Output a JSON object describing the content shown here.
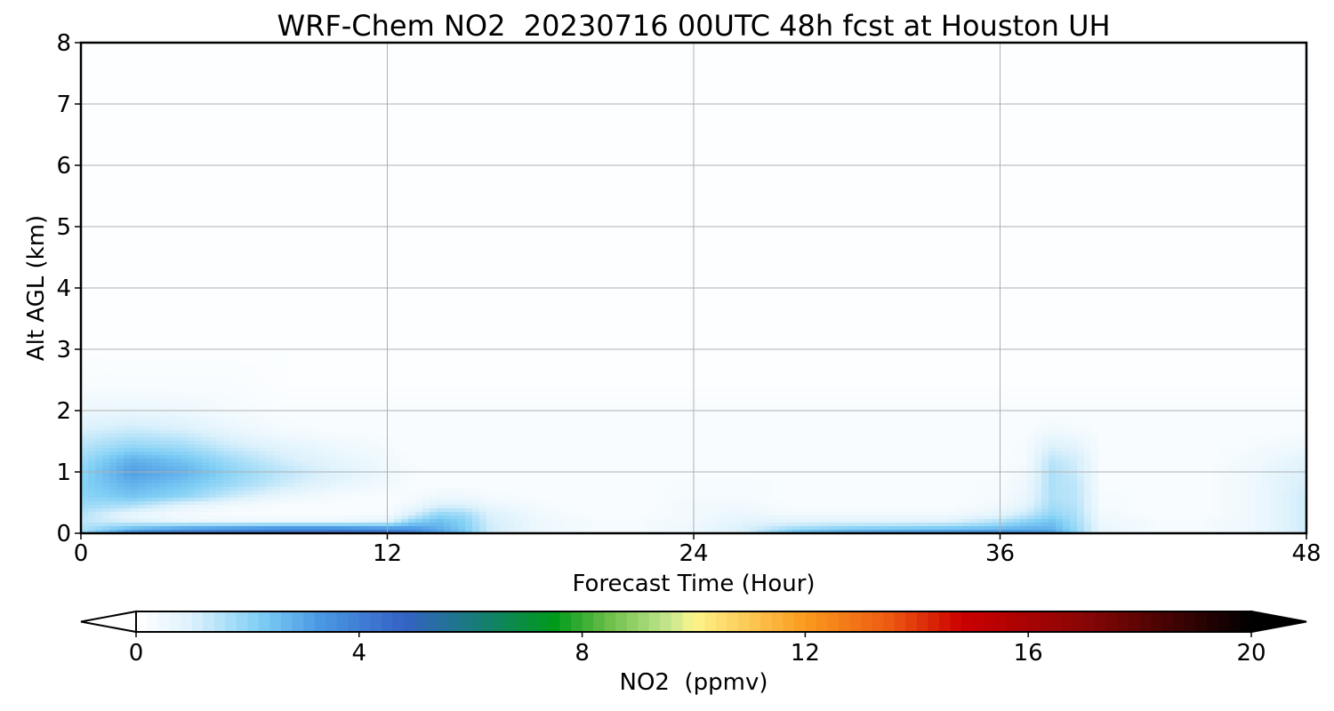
{
  "chart_data": {
    "type": "heatmap",
    "title": "WRF-Chem NO2  20230716 00UTC 48h fcst at Houston UH",
    "xlabel": "Forecast Time (Hour)",
    "ylabel": "Alt AGL (km)",
    "xlim": [
      0,
      48
    ],
    "ylim": [
      0,
      8
    ],
    "xticks": [
      "0",
      "12",
      "24",
      "36",
      "48"
    ],
    "yticks": [
      "0",
      "1",
      "2",
      "3",
      "4",
      "5",
      "6",
      "7",
      "8"
    ],
    "grid": true,
    "x_hours": [
      0,
      2,
      4,
      6,
      8,
      10,
      12,
      13,
      14,
      15,
      16,
      18,
      20,
      22,
      24,
      26,
      28,
      30,
      32,
      34,
      36,
      37,
      38,
      39,
      40,
      42,
      44,
      46,
      48
    ],
    "alt_km": [
      0,
      0.05,
      0.1,
      0.2,
      0.3,
      0.45,
      0.6,
      0.8,
      1.0,
      1.2,
      1.4,
      1.7,
      2.0,
      2.4,
      3.0,
      8.0
    ],
    "no2_ppmv": [
      [
        1.8,
        3.5,
        4.0,
        4.2,
        4.4,
        4.5,
        4.5,
        4.0,
        3.2,
        2.5,
        1.2,
        0.5,
        0.3,
        0.3,
        0.5,
        1.0,
        2.5,
        3.0,
        3.2,
        3.3,
        3.5,
        3.5,
        3.3,
        2.0,
        0.6,
        0.3,
        0.3,
        0.5,
        1.2
      ],
      [
        1.6,
        3.0,
        3.5,
        3.8,
        4.0,
        4.0,
        3.8,
        3.6,
        3.0,
        2.4,
        1.2,
        0.5,
        0.3,
        0.3,
        0.5,
        1.0,
        2.2,
        2.6,
        2.8,
        2.9,
        3.0,
        3.0,
        2.9,
        1.9,
        0.6,
        0.3,
        0.3,
        0.5,
        1.2
      ],
      [
        1.5,
        2.2,
        2.6,
        2.8,
        3.0,
        3.0,
        2.8,
        3.0,
        2.8,
        2.2,
        1.2,
        0.5,
        0.3,
        0.3,
        0.5,
        1.0,
        1.5,
        1.8,
        1.9,
        2.0,
        2.3,
        2.6,
        2.7,
        1.8,
        0.6,
        0.3,
        0.3,
        0.5,
        1.2
      ],
      [
        1.4,
        1.0,
        0.6,
        0.5,
        0.5,
        0.5,
        0.8,
        2.0,
        2.5,
        2.1,
        1.1,
        0.5,
        0.3,
        0.3,
        0.4,
        0.8,
        0.8,
        0.8,
        0.8,
        0.9,
        1.5,
        2.0,
        2.4,
        1.7,
        0.5,
        0.3,
        0.3,
        0.5,
        1.2
      ],
      [
        1.5,
        0.6,
        0.3,
        0.2,
        0.2,
        0.2,
        0.3,
        1.1,
        2.0,
        1.8,
        1.0,
        0.4,
        0.2,
        0.2,
        0.4,
        0.6,
        0.4,
        0.4,
        0.4,
        0.4,
        0.8,
        1.3,
        2.0,
        1.6,
        0.4,
        0.2,
        0.2,
        0.5,
        1.2
      ],
      [
        1.8,
        1.6,
        0.8,
        0.4,
        0.2,
        0.2,
        0.2,
        0.5,
        1.0,
        1.0,
        0.6,
        0.3,
        0.2,
        0.2,
        0.4,
        0.4,
        0.2,
        0.2,
        0.2,
        0.2,
        0.4,
        0.8,
        1.7,
        1.5,
        0.3,
        0.2,
        0.2,
        0.5,
        1.2
      ],
      [
        2.0,
        2.4,
        2.0,
        1.2,
        0.6,
        0.3,
        0.2,
        0.3,
        0.5,
        0.5,
        0.3,
        0.2,
        0.2,
        0.2,
        0.3,
        0.3,
        0.2,
        0.2,
        0.2,
        0.2,
        0.3,
        0.6,
        1.6,
        1.4,
        0.3,
        0.2,
        0.2,
        0.5,
        1.2
      ],
      [
        2.1,
        2.8,
        2.4,
        1.8,
        1.2,
        0.7,
        0.4,
        0.2,
        0.2,
        0.2,
        0.2,
        0.2,
        0.2,
        0.2,
        0.3,
        0.3,
        0.2,
        0.2,
        0.2,
        0.2,
        0.3,
        0.5,
        1.6,
        1.4,
        0.2,
        0.2,
        0.2,
        0.5,
        1.1
      ],
      [
        2.0,
        3.2,
        2.8,
        2.0,
        1.4,
        0.9,
        0.5,
        0.3,
        0.2,
        0.2,
        0.2,
        0.2,
        0.2,
        0.2,
        0.2,
        0.2,
        0.2,
        0.2,
        0.2,
        0.2,
        0.2,
        0.4,
        1.6,
        1.2,
        0.2,
        0.2,
        0.2,
        0.5,
        1.0
      ],
      [
        1.8,
        2.8,
        2.4,
        1.7,
        1.1,
        0.7,
        0.4,
        0.2,
        0.2,
        0.2,
        0.2,
        0.2,
        0.2,
        0.2,
        0.2,
        0.2,
        0.2,
        0.2,
        0.2,
        0.2,
        0.2,
        0.3,
        1.4,
        1.1,
        0.2,
        0.2,
        0.2,
        0.4,
        0.8
      ],
      [
        1.5,
        2.0,
        1.8,
        1.2,
        0.8,
        0.5,
        0.3,
        0.2,
        0.2,
        0.2,
        0.2,
        0.2,
        0.2,
        0.2,
        0.2,
        0.2,
        0.2,
        0.2,
        0.2,
        0.2,
        0.2,
        0.3,
        1.0,
        0.8,
        0.2,
        0.2,
        0.2,
        0.3,
        0.5
      ],
      [
        1.0,
        1.2,
        1.0,
        0.6,
        0.3,
        0.2,
        0.2,
        0.2,
        0.2,
        0.2,
        0.2,
        0.2,
        0.2,
        0.2,
        0.2,
        0.2,
        0.2,
        0.2,
        0.2,
        0.2,
        0.2,
        0.2,
        0.4,
        0.3,
        0.2,
        0.2,
        0.2,
        0.2,
        0.2
      ],
      [
        0.5,
        0.6,
        0.5,
        0.3,
        0.2,
        0.2,
        0.2,
        0.2,
        0.2,
        0.2,
        0.2,
        0.2,
        0.2,
        0.2,
        0.2,
        0.2,
        0.2,
        0.2,
        0.2,
        0.2,
        0.2,
        0.2,
        0.2,
        0.2,
        0.2,
        0.2,
        0.2,
        0.2,
        0.2
      ],
      [
        0.25,
        0.2,
        0.2,
        0.2,
        0.1,
        0.1,
        0.1,
        0.1,
        0.1,
        0.1,
        0.1,
        0.1,
        0.1,
        0.1,
        0.1,
        0.1,
        0.1,
        0.1,
        0.1,
        0.1,
        0.1,
        0.1,
        0.1,
        0.1,
        0.1,
        0.1,
        0.1,
        0.1,
        0.1
      ],
      [
        0.1,
        0.1,
        0.1,
        0.1,
        0.1,
        0.1,
        0.1,
        0.1,
        0.1,
        0.1,
        0.1,
        0.1,
        0.1,
        0.1,
        0.1,
        0.1,
        0.1,
        0.1,
        0.1,
        0.1,
        0.1,
        0.1,
        0.1,
        0.1,
        0.1,
        0.1,
        0.1,
        0.1,
        0.1
      ],
      [
        0.1,
        0.1,
        0.1,
        0.1,
        0.1,
        0.1,
        0.1,
        0.1,
        0.1,
        0.1,
        0.1,
        0.1,
        0.1,
        0.1,
        0.1,
        0.1,
        0.1,
        0.1,
        0.1,
        0.1,
        0.1,
        0.1,
        0.1,
        0.1,
        0.1,
        0.1,
        0.1,
        0.1,
        0.1
      ]
    ],
    "colorbar": {
      "label": "NO2  (ppmv)",
      "range": [
        0,
        20
      ],
      "ticks": [
        "0",
        "4",
        "8",
        "12",
        "16",
        "20"
      ],
      "extend": "both",
      "stops": [
        {
          "v": 0,
          "c": "#ffffff"
        },
        {
          "v": 1,
          "c": "#dcf1fc"
        },
        {
          "v": 2.2,
          "c": "#80cff5"
        },
        {
          "v": 3.3,
          "c": "#4a98e3"
        },
        {
          "v": 4.8,
          "c": "#3562c6"
        },
        {
          "v": 6.2,
          "c": "#157e72"
        },
        {
          "v": 7.5,
          "c": "#009a1a"
        },
        {
          "v": 8.5,
          "c": "#6fc04b"
        },
        {
          "v": 9.6,
          "c": "#c9e891"
        },
        {
          "v": 10,
          "c": "#fdf58a"
        },
        {
          "v": 12,
          "c": "#fb9a1e"
        },
        {
          "v": 13.5,
          "c": "#ed5a12"
        },
        {
          "v": 14.8,
          "c": "#cc0000"
        },
        {
          "v": 17,
          "c": "#8a0606"
        },
        {
          "v": 20,
          "c": "#000000"
        }
      ]
    }
  }
}
